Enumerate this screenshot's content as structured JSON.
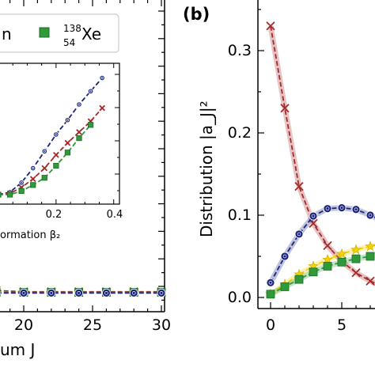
{
  "legend": {
    "left_fragment": "n",
    "xe_mass": "138",
    "xe_z": "54",
    "xe_symbol": "Xe",
    "xe_color": "#2e9a3a"
  },
  "left_panel": {
    "x_tick_labels": [
      "20",
      "25",
      "30"
    ],
    "x_label_fragment": "um J",
    "inset": {
      "x_tick_labels": [
        "0.2",
        "0.4"
      ],
      "x_label_fragment": "ormation β₂"
    }
  },
  "right_panel": {
    "panel_label": "(b)",
    "y_label": "Distribution |a_J|²",
    "y_tick_labels": [
      "0.0",
      "0.1",
      "0.2",
      "0.3"
    ],
    "x_tick_labels": [
      "0",
      "5"
    ]
  },
  "colors": {
    "blue": "#1a237e",
    "red": "#a52a2a",
    "green": "#2e9a3a",
    "yellow": "#f2d200"
  },
  "chart_data": [
    {
      "type": "line",
      "note_panel": "main-left",
      "xlim": [
        17,
        30
      ],
      "ylim": [
        0,
        1
      ],
      "x_ticks": [
        20,
        25,
        30
      ],
      "series": [
        {
          "color": "#a52a2a",
          "marker": "x",
          "x": [
            17,
            18,
            20,
            22,
            24,
            26,
            28,
            30
          ],
          "y": [
            0.008,
            0.006,
            0.004,
            0.004,
            0.004,
            0.004,
            0.004,
            0.004
          ]
        },
        {
          "color": "#2e9a3a",
          "marker": "square",
          "x": [
            17,
            18,
            20,
            22,
            24,
            26,
            28,
            30
          ],
          "y": [
            0.003,
            0.003,
            0.003,
            0.003,
            0.003,
            0.003,
            0.003,
            0.003
          ]
        },
        {
          "color": "#1a237e",
          "marker": "circle",
          "x": [
            17,
            18,
            20,
            22,
            24,
            26,
            28,
            30
          ],
          "y": [
            0.002,
            0.002,
            0.002,
            0.002,
            0.002,
            0.002,
            0.002,
            0.002
          ]
        }
      ]
    },
    {
      "type": "line",
      "note_panel": "inset",
      "xlim": [
        0.0,
        0.42
      ],
      "ylim": [
        0,
        1
      ],
      "x_ticks": [
        0.2,
        0.4
      ],
      "series": [
        {
          "color": "#1a237e",
          "marker": "circle",
          "x": [
            0.0,
            0.04,
            0.08,
            0.12,
            0.16,
            0.2,
            0.24,
            0.28,
            0.32,
            0.36
          ],
          "y": [
            0.0,
            0.02,
            0.1,
            0.22,
            0.36,
            0.5,
            0.62,
            0.75,
            0.86,
            0.97
          ]
        },
        {
          "color": "#a52a2a",
          "marker": "x",
          "x": [
            0.0,
            0.04,
            0.08,
            0.12,
            0.16,
            0.2,
            0.24,
            0.28,
            0.32,
            0.36
          ],
          "y": [
            0.0,
            0.01,
            0.06,
            0.13,
            0.22,
            0.33,
            0.43,
            0.52,
            0.61,
            0.72
          ]
        },
        {
          "color": "#2e9a3a",
          "marker": "square",
          "x": [
            0.0,
            0.04,
            0.08,
            0.12,
            0.16,
            0.2,
            0.24,
            0.28,
            0.32
          ],
          "y": [
            0.0,
            0.0,
            0.03,
            0.08,
            0.14,
            0.24,
            0.35,
            0.47,
            0.58
          ]
        }
      ]
    },
    {
      "type": "line",
      "note_panel": "b",
      "xlim": [
        -0.7,
        9
      ],
      "ylim": [
        -0.01,
        0.36
      ],
      "x_ticks": [
        0,
        5
      ],
      "y_ticks": [
        0.0,
        0.1,
        0.2,
        0.3
      ],
      "series": [
        {
          "color": "#a52a2a",
          "marker": "x",
          "x": [
            0,
            1,
            2,
            3,
            4,
            5,
            6,
            7,
            8
          ],
          "y": [
            0.33,
            0.23,
            0.135,
            0.09,
            0.063,
            0.044,
            0.03,
            0.02,
            0.012
          ]
        },
        {
          "color": "#1a237e",
          "marker": "circle",
          "x": [
            0,
            1,
            2,
            3,
            4,
            5,
            6,
            7,
            8
          ],
          "y": [
            0.018,
            0.05,
            0.077,
            0.099,
            0.108,
            0.109,
            0.107,
            0.1,
            0.092
          ]
        },
        {
          "color": "#f2d200",
          "marker": "star",
          "x": [
            0,
            1,
            2,
            3,
            4,
            5,
            6,
            7,
            8,
            9
          ],
          "y": [
            0.004,
            0.016,
            0.028,
            0.038,
            0.046,
            0.053,
            0.058,
            0.062,
            0.066,
            0.069
          ]
        },
        {
          "color": "#2e9a3a",
          "marker": "square",
          "x": [
            0,
            1,
            2,
            3,
            4,
            5,
            6,
            7,
            8,
            9
          ],
          "y": [
            0.004,
            0.013,
            0.022,
            0.031,
            0.038,
            0.043,
            0.047,
            0.05,
            0.053,
            0.055
          ]
        }
      ]
    }
  ]
}
